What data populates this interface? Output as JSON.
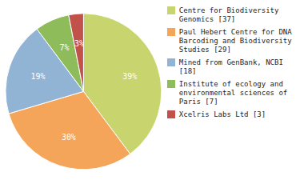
{
  "chart_data": {
    "type": "pie",
    "categories": [
      "Centre for Biodiversity\nGenomics [37]",
      "Paul Hebert Centre for DNA\nBarcoding and Biodiversity\nStudies [29]",
      "Mined from GenBank, NCBI [18]",
      "Institute of ecology and\nenvironmental sciences of\nParis [7]",
      "Xcelris Labs Ltd [3]"
    ],
    "values": [
      39,
      30,
      19,
      7,
      3
    ],
    "value_labels": [
      "39%",
      "30%",
      "19%",
      "7%",
      "3%"
    ],
    "colors": [
      "#c8d46e",
      "#f4a55a",
      "#92b4d4",
      "#8fbc5a",
      "#c0524a"
    ],
    "data_labels": true,
    "legend": "right"
  }
}
